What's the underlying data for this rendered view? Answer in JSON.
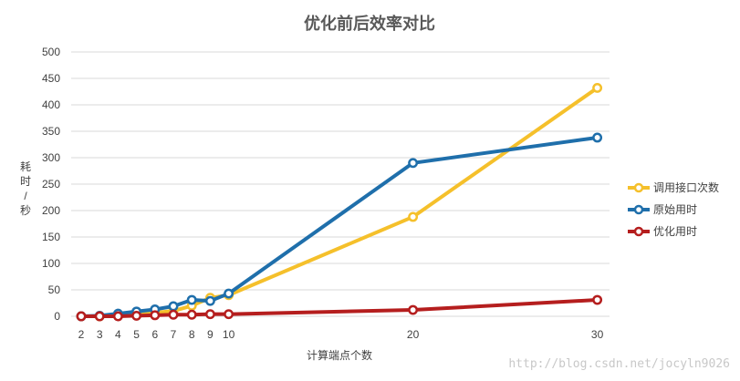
{
  "chart_data": {
    "type": "line",
    "title": "优化前后效率对比",
    "xlabel": "计算端点个数",
    "ylabel": "耗时/秒",
    "x": [
      2,
      3,
      4,
      5,
      6,
      7,
      8,
      9,
      10,
      20,
      30
    ],
    "x_tick_labels": [
      "2",
      "3",
      "4",
      "5",
      "6",
      "7",
      "8",
      "9",
      "10",
      "20",
      "30"
    ],
    "ylim": [
      0,
      500
    ],
    "yticks": [
      0,
      50,
      100,
      150,
      200,
      250,
      300,
      350,
      400,
      450,
      500
    ],
    "grid": true,
    "legend_position": "right",
    "series": [
      {
        "name": "调用接口次数",
        "color": "#F5C02B",
        "values": [
          0,
          0,
          2,
          4,
          7,
          10,
          20,
          35,
          40,
          188,
          432
        ]
      },
      {
        "name": "原始用时",
        "color": "#1F6FAB",
        "values": [
          0,
          1,
          5,
          9,
          13,
          19,
          31,
          29,
          43,
          290,
          338
        ]
      },
      {
        "name": "优化用时",
        "color": "#B51E1E",
        "values": [
          0,
          0,
          0,
          1,
          2,
          3,
          3,
          4,
          4,
          12,
          31
        ]
      }
    ]
  },
  "watermark": "http://blog.csdn.net/jocyln9026"
}
